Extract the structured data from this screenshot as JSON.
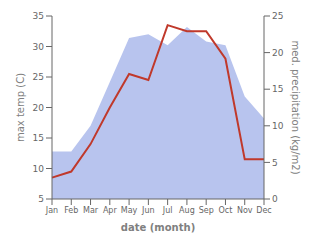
{
  "chart_data": {
    "type": "line",
    "categories": [
      "Jan",
      "Feb",
      "Mar",
      "Apr",
      "May",
      "Jun",
      "Jul",
      "Aug",
      "Sep",
      "Oct",
      "Nov",
      "Dec"
    ],
    "xlabel": "date (month)",
    "ylabel": "max temp (C)",
    "y2label": "med. precipitation (kg/m2)",
    "ylim": [
      5,
      35
    ],
    "yticks": [
      5,
      10,
      15,
      20,
      25,
      30,
      35
    ],
    "y2lim": [
      0,
      25
    ],
    "y2ticks": [
      0,
      5,
      10,
      15,
      20,
      25
    ],
    "grid": false,
    "series": [
      {
        "type": "area",
        "axis": "y2",
        "color": "#b8c4ee",
        "values": [
          6.5,
          6.5,
          10.0,
          16.0,
          22.0,
          22.5,
          21.0,
          23.5,
          21.5,
          21.0,
          14.0,
          11.0
        ]
      },
      {
        "type": "line",
        "color": "#c0392b",
        "values": [
          8.5,
          9.5,
          14.0,
          20.0,
          25.5,
          24.5,
          33.5,
          32.5,
          32.5,
          28.0,
          11.5,
          11.5
        ]
      }
    ]
  }
}
